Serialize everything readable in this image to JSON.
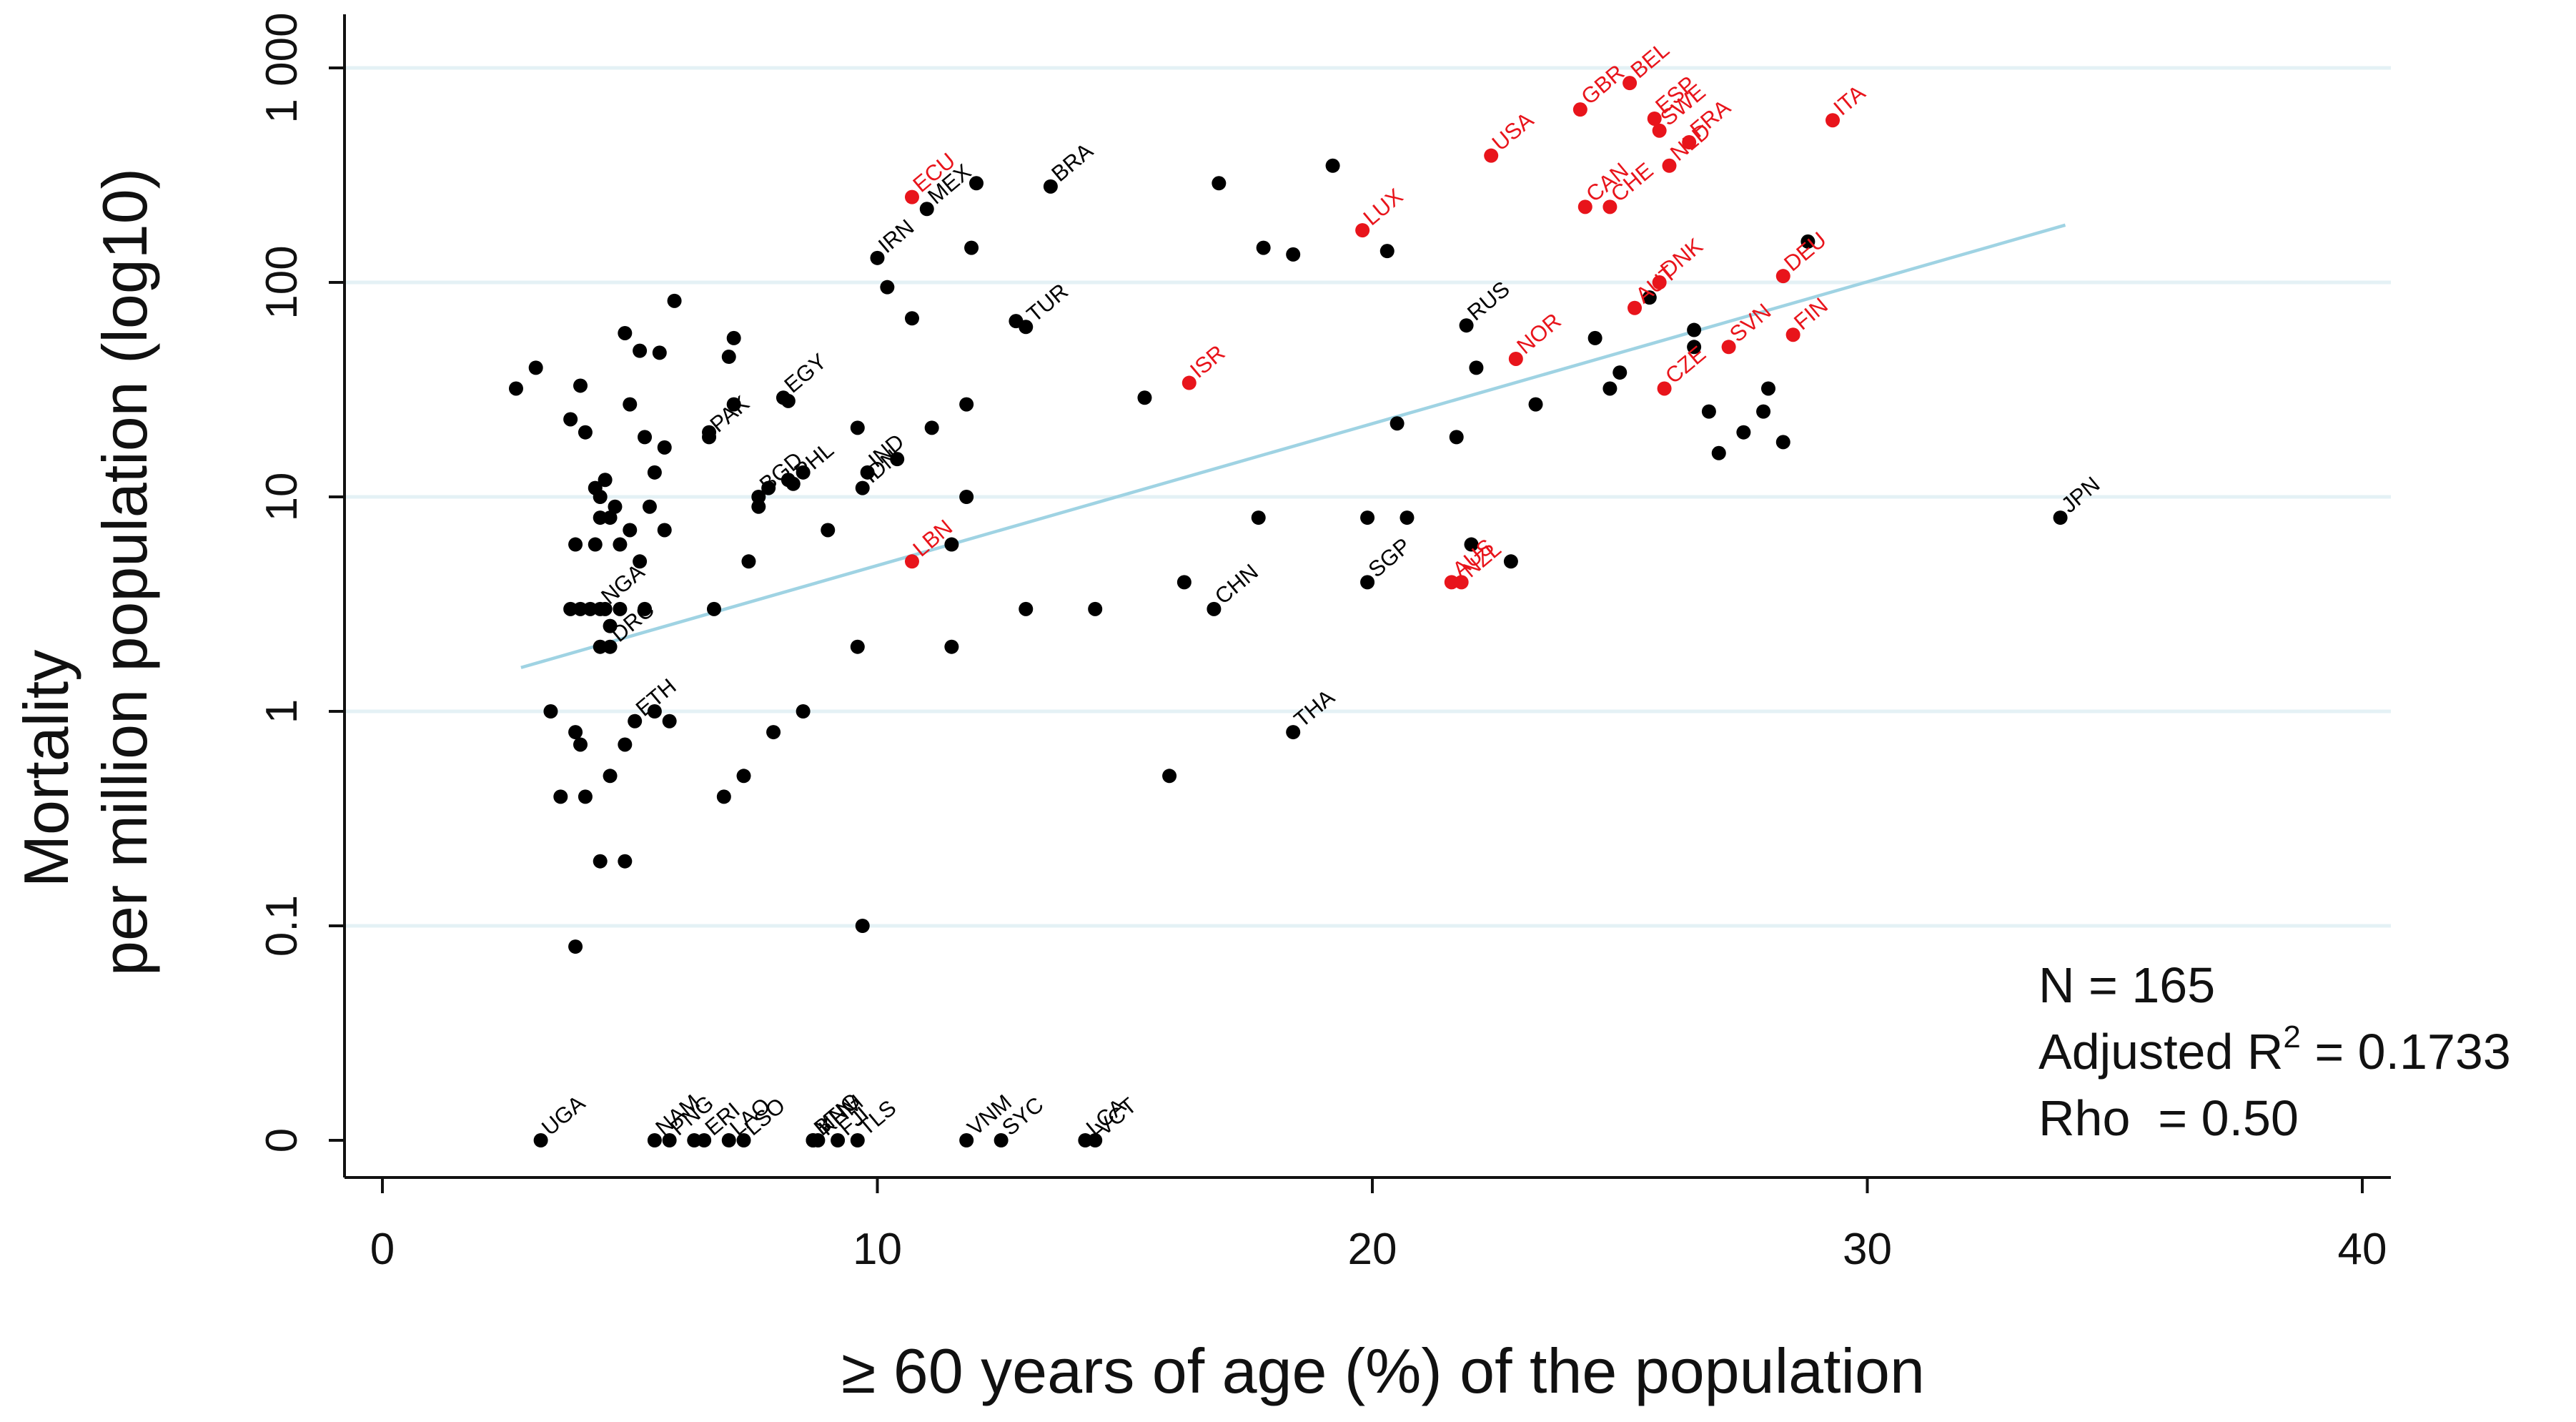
{
  "chart_data": {
    "type": "scatter",
    "title": "",
    "xlabel": "≥ 60 years of age (%) of the population",
    "ylabel_line1": "Mortality",
    "ylabel_line2": "per million population (log10)",
    "xlim": [
      0,
      40
    ],
    "yscale": "log10 with zero row",
    "x_ticks": [
      {
        "value": 0,
        "label": "0"
      },
      {
        "value": 10,
        "label": "10"
      },
      {
        "value": 20,
        "label": "20"
      },
      {
        "value": 30,
        "label": "30"
      },
      {
        "value": 40,
        "label": "40"
      }
    ],
    "y_ticks": [
      {
        "value": 0,
        "label": "0"
      },
      {
        "value": 0.1,
        "label": "0.1"
      },
      {
        "value": 1,
        "label": "1"
      },
      {
        "value": 10,
        "label": "10"
      },
      {
        "value": 100,
        "label": "100"
      },
      {
        "value": 1000,
        "label": "1 000"
      }
    ],
    "grid": "horizontal",
    "colors": {
      "default": "#000000",
      "highlight": "#e8141b",
      "fit_line": "#9fd3e3",
      "grid": "#e4f1f5"
    },
    "fit_line": {
      "x": [
        2.8,
        34
      ],
      "y": [
        1.6,
        185
      ]
    },
    "stats": {
      "n_text": "N = 165",
      "r2_prefix": "Adjusted R",
      "r2_sup": "2",
      "r2_suffix": " = 0.1733",
      "rho_text": "Rho  = 0.50"
    },
    "labeled_points": [
      {
        "label": "ECU",
        "x": 10.7,
        "y": 250,
        "hl": true
      },
      {
        "label": "MEX",
        "x": 11.0,
        "y": 220,
        "hl": false
      },
      {
        "label": "IRN",
        "x": 10.0,
        "y": 130,
        "hl": false
      },
      {
        "label": "BRA",
        "x": 13.5,
        "y": 280,
        "hl": false
      },
      {
        "label": "TUR",
        "x": 13.0,
        "y": 62,
        "hl": false
      },
      {
        "label": "LUX",
        "x": 19.8,
        "y": 175,
        "hl": true
      },
      {
        "label": "USA",
        "x": 22.4,
        "y": 390,
        "hl": true
      },
      {
        "label": "GBR",
        "x": 24.2,
        "y": 640,
        "hl": true
      },
      {
        "label": "BEL",
        "x": 25.2,
        "y": 850,
        "hl": true
      },
      {
        "label": "ESP",
        "x": 25.7,
        "y": 580,
        "hl": true
      },
      {
        "label": "SWE",
        "x": 25.8,
        "y": 510,
        "hl": true
      },
      {
        "label": "FRA",
        "x": 26.4,
        "y": 450,
        "hl": true
      },
      {
        "label": "NLD",
        "x": 26.0,
        "y": 350,
        "hl": true
      },
      {
        "label": "ITA",
        "x": 29.3,
        "y": 570,
        "hl": true
      },
      {
        "label": "CAN",
        "x": 24.3,
        "y": 225,
        "hl": true
      },
      {
        "label": "CHE",
        "x": 24.8,
        "y": 225,
        "hl": true
      },
      {
        "label": "AUT",
        "x": 25.3,
        "y": 76,
        "hl": true
      },
      {
        "label": "DNK",
        "x": 25.8,
        "y": 100,
        "hl": true
      },
      {
        "label": "DEU",
        "x": 28.3,
        "y": 107,
        "hl": true
      },
      {
        "label": "RUS",
        "x": 21.9,
        "y": 63,
        "hl": false
      },
      {
        "label": "NOR",
        "x": 22.9,
        "y": 44,
        "hl": true
      },
      {
        "label": "ISR",
        "x": 16.3,
        "y": 34,
        "hl": true
      },
      {
        "label": "CZE",
        "x": 25.9,
        "y": 32,
        "hl": true
      },
      {
        "label": "SVN",
        "x": 27.2,
        "y": 50,
        "hl": true
      },
      {
        "label": "FIN",
        "x": 28.5,
        "y": 57,
        "hl": true
      },
      {
        "label": "EGY",
        "x": 8.1,
        "y": 29,
        "hl": false
      },
      {
        "label": "PAK",
        "x": 6.6,
        "y": 19,
        "hl": false
      },
      {
        "label": "BGD",
        "x": 7.6,
        "y": 10,
        "hl": false
      },
      {
        "label": "PHL",
        "x": 8.3,
        "y": 11.5,
        "hl": false
      },
      {
        "label": "IND",
        "x": 9.8,
        "y": 13,
        "hl": false
      },
      {
        "label": "IDN",
        "x": 9.7,
        "y": 11,
        "hl": false
      },
      {
        "label": "LBN",
        "x": 10.7,
        "y": 5,
        "hl": true
      },
      {
        "label": "CHN",
        "x": 16.8,
        "y": 3,
        "hl": false
      },
      {
        "label": "SGP",
        "x": 19.9,
        "y": 4,
        "hl": false
      },
      {
        "label": "AUS",
        "x": 21.6,
        "y": 4,
        "hl": true
      },
      {
        "label": "NZL",
        "x": 21.8,
        "y": 4,
        "hl": true
      },
      {
        "label": "JPN",
        "x": 33.9,
        "y": 8,
        "hl": false
      },
      {
        "label": "NGA",
        "x": 4.4,
        "y": 3,
        "hl": false
      },
      {
        "label": "DRC",
        "x": 4.6,
        "y": 2,
        "hl": false
      },
      {
        "label": "ETH",
        "x": 5.1,
        "y": 0.9,
        "hl": false
      },
      {
        "label": "THA",
        "x": 18.4,
        "y": 0.8,
        "hl": false
      },
      {
        "label": "UGA",
        "x": 3.2,
        "y": 0,
        "hl": false
      },
      {
        "label": "NAM",
        "x": 5.5,
        "y": 0,
        "hl": false
      },
      {
        "label": "PNG",
        "x": 5.8,
        "y": 0,
        "hl": false
      },
      {
        "label": "ERI",
        "x": 6.5,
        "y": 0,
        "hl": false
      },
      {
        "label": "LAO",
        "x": 7.0,
        "y": 0,
        "hl": false
      },
      {
        "label": "LSO",
        "x": 7.3,
        "y": 0,
        "hl": false
      },
      {
        "label": "MNG",
        "x": 8.7,
        "y": 0,
        "hl": false
      },
      {
        "label": "KHM",
        "x": 8.8,
        "y": 0,
        "hl": false
      },
      {
        "label": "TLS",
        "x": 9.6,
        "y": 0,
        "hl": false
      },
      {
        "label": "BTN",
        "x": 8.7,
        "y": 0,
        "hl": false
      },
      {
        "label": "FJI",
        "x": 9.2,
        "y": 0,
        "hl": false
      },
      {
        "label": "VNM",
        "x": 11.8,
        "y": 0,
        "hl": false
      },
      {
        "label": "SYC",
        "x": 12.5,
        "y": 0,
        "hl": false
      },
      {
        "label": "LCA",
        "x": 14.2,
        "y": 0,
        "hl": false
      },
      {
        "label": "VCT",
        "x": 14.4,
        "y": 0,
        "hl": false
      }
    ],
    "unlabeled_points": [
      [
        16.9,
        290
      ],
      [
        19.2,
        350
      ],
      [
        12.0,
        290
      ],
      [
        11.9,
        145
      ],
      [
        10.2,
        95
      ],
      [
        10.7,
        68
      ],
      [
        17.8,
        145
      ],
      [
        18.4,
        135
      ],
      [
        20.3,
        140
      ],
      [
        12.8,
        66
      ],
      [
        24.5,
        55
      ],
      [
        25.6,
        85
      ],
      [
        22.1,
        40
      ],
      [
        25.0,
        38
      ],
      [
        23.3,
        27
      ],
      [
        24.8,
        32
      ],
      [
        26.5,
        60
      ],
      [
        26.5,
        50
      ],
      [
        26.8,
        25
      ],
      [
        27.0,
        16
      ],
      [
        27.5,
        20
      ],
      [
        27.9,
        25
      ],
      [
        28.0,
        32
      ],
      [
        28.3,
        18
      ],
      [
        28.8,
        155
      ],
      [
        15.4,
        29
      ],
      [
        20.5,
        22
      ],
      [
        21.7,
        19
      ],
      [
        17.7,
        8
      ],
      [
        19.9,
        8
      ],
      [
        20.7,
        8
      ],
      [
        22.0,
        6
      ],
      [
        22.8,
        5
      ],
      [
        16.2,
        4
      ],
      [
        14.4,
        3
      ],
      [
        13.0,
        3
      ],
      [
        11.5,
        6
      ],
      [
        11.8,
        10
      ],
      [
        11.8,
        27
      ],
      [
        11.1,
        21
      ],
      [
        10.4,
        15
      ],
      [
        9.6,
        21
      ],
      [
        9.0,
        7
      ],
      [
        8.5,
        13
      ],
      [
        8.2,
        12
      ],
      [
        7.8,
        11
      ],
      [
        7.6,
        9
      ],
      [
        7.4,
        5
      ],
      [
        6.7,
        3
      ],
      [
        7.1,
        27
      ],
      [
        7.1,
        55
      ],
      [
        7.0,
        45
      ],
      [
        6.6,
        20
      ],
      [
        5.9,
        82
      ],
      [
        5.6,
        47
      ],
      [
        5.2,
        48
      ],
      [
        4.9,
        58
      ],
      [
        5.0,
        27
      ],
      [
        5.3,
        19
      ],
      [
        5.7,
        17
      ],
      [
        5.5,
        13
      ],
      [
        5.4,
        9
      ],
      [
        5.7,
        7
      ],
      [
        5.0,
        7
      ],
      [
        4.7,
        9
      ],
      [
        4.5,
        12
      ],
      [
        4.4,
        10
      ],
      [
        4.6,
        8
      ],
      [
        4.8,
        6
      ],
      [
        4.1,
        20
      ],
      [
        4.0,
        33
      ],
      [
        3.8,
        23
      ],
      [
        3.1,
        40
      ],
      [
        2.7,
        32
      ],
      [
        3.9,
        6
      ],
      [
        4.3,
        6
      ],
      [
        4.3,
        11
      ],
      [
        4.4,
        8
      ],
      [
        3.8,
        3
      ],
      [
        4.0,
        3
      ],
      [
        4.2,
        3
      ],
      [
        4.5,
        3
      ],
      [
        4.8,
        3
      ],
      [
        5.3,
        3
      ],
      [
        4.6,
        2.5
      ],
      [
        4.4,
        2
      ],
      [
        5.2,
        5
      ],
      [
        9.6,
        2
      ],
      [
        11.5,
        2
      ],
      [
        3.4,
        1.0
      ],
      [
        3.9,
        0.8
      ],
      [
        4.0,
        0.7
      ],
      [
        3.6,
        0.4
      ],
      [
        4.1,
        0.4
      ],
      [
        4.6,
        0.5
      ],
      [
        4.9,
        0.7
      ],
      [
        5.5,
        1.0
      ],
      [
        5.8,
        0.9
      ],
      [
        6.9,
        0.4
      ],
      [
        7.3,
        0.5
      ],
      [
        7.9,
        0.8
      ],
      [
        8.5,
        1.0
      ],
      [
        4.4,
        0.2
      ],
      [
        4.9,
        0.2
      ],
      [
        3.9,
        0.08
      ],
      [
        9.7,
        0.1
      ],
      [
        15.9,
        0.5
      ],
      [
        8.2,
        28
      ],
      [
        6.3,
        0
      ]
    ]
  }
}
